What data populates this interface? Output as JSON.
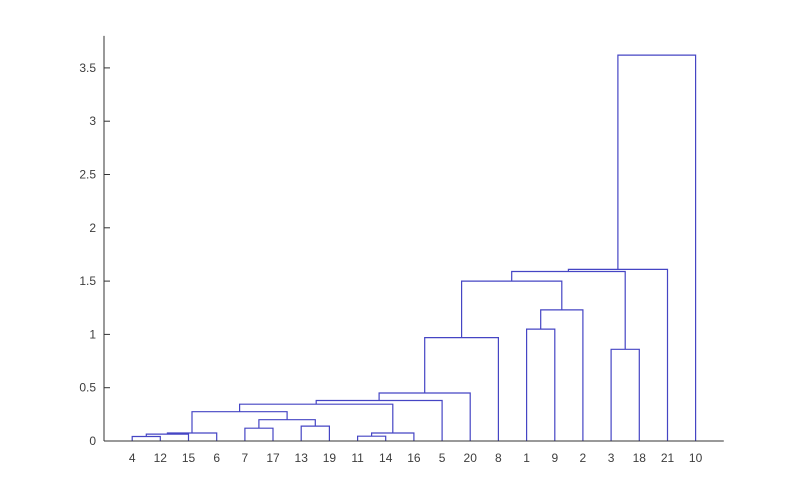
{
  "figure": {
    "background": "#ffffff"
  },
  "chart_data": {
    "type": "dendrogram",
    "orientation": "vertical",
    "title": "",
    "xlabel": "",
    "ylabel": "",
    "grid": false,
    "x_leaf_labels": [
      "4",
      "12",
      "15",
      "6",
      "7",
      "17",
      "13",
      "19",
      "11",
      "14",
      "16",
      "5",
      "20",
      "8",
      "1",
      "9",
      "2",
      "3",
      "18",
      "21",
      "10"
    ],
    "y_tick_labels": [
      "0",
      "0.5",
      "1",
      "1.5",
      "2",
      "2.5",
      "3",
      "3.5"
    ],
    "y_tick_values": [
      0,
      0.5,
      1,
      1.5,
      2,
      2.5,
      3,
      3.5
    ],
    "ylim": [
      0,
      3.8
    ],
    "xlim": [
      0,
      22
    ],
    "merges": [
      {
        "a": "4",
        "b": "12",
        "h": 0.042
      },
      {
        "a": "#0",
        "b": "15",
        "h": 0.065
      },
      {
        "a": "#1",
        "b": "6",
        "h": 0.075
      },
      {
        "a": "7",
        "b": "17",
        "h": 0.12
      },
      {
        "a": "13",
        "b": "19",
        "h": 0.14
      },
      {
        "a": "#3",
        "b": "#4",
        "h": 0.2
      },
      {
        "a": "#2",
        "b": "#5",
        "h": 0.275
      },
      {
        "a": "11",
        "b": "14",
        "h": 0.045
      },
      {
        "a": "#7",
        "b": "16",
        "h": 0.075
      },
      {
        "a": "#6",
        "b": "#8",
        "h": 0.345
      },
      {
        "a": "#9",
        "b": "5",
        "h": 0.38
      },
      {
        "a": "#10",
        "b": "20",
        "h": 0.45
      },
      {
        "a": "#11",
        "b": "8",
        "h": 0.97
      },
      {
        "a": "1",
        "b": "9",
        "h": 1.05
      },
      {
        "a": "#13",
        "b": "2",
        "h": 1.23
      },
      {
        "a": "#12",
        "b": "#14",
        "h": 1.5
      },
      {
        "a": "3",
        "b": "18",
        "h": 0.86
      },
      {
        "a": "#15",
        "b": "#16",
        "h": 1.59
      },
      {
        "a": "#17",
        "b": "21",
        "h": 1.61
      },
      {
        "a": "#18",
        "b": "10",
        "h": 3.62
      }
    ],
    "colors": {
      "link": "#4545c4",
      "axis": "#333333",
      "tick_label": "#3d3d3d"
    }
  }
}
